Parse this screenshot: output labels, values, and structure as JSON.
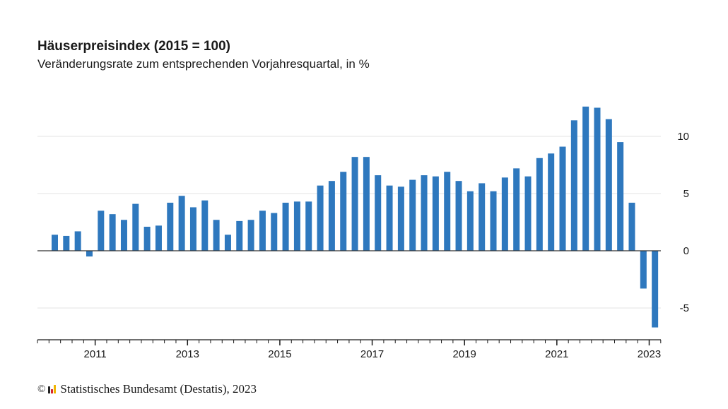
{
  "header": {
    "title": "Häuserpreisindex (2015 = 100)",
    "subtitle": "Veränderungsrate zum entsprechenden Vorjahresquartal, in %"
  },
  "footer": {
    "copyright_symbol": "©",
    "logo_icon": "destatis-bar-logo-icon",
    "source": "Statistisches Bundesamt (Destatis), 2023"
  },
  "colors": {
    "bar": "#2e78be",
    "zero_line": "#333333",
    "grid": "#e3e3e3",
    "axis": "#1a1a1a"
  },
  "chart_data": {
    "type": "bar",
    "title": "Häuserpreisindex (2015 = 100)",
    "subtitle": "Veränderungsrate zum entsprechenden Vorjahresquartal, in %",
    "xlabel": "",
    "ylabel": "",
    "y_axis_position": "right",
    "ylim": [
      -7.5,
      14
    ],
    "yticks": [
      -5,
      0,
      5,
      10
    ],
    "ytick_labels": [
      "-5",
      "0",
      "5",
      "10"
    ],
    "grid": true,
    "x_range": [
      "2009-Q4",
      "2023-Q2"
    ],
    "xtick_labels": [
      "2011",
      "2013",
      "2015",
      "2017",
      "2019",
      "2021",
      "2023"
    ],
    "xtick_years": [
      2011,
      2013,
      2015,
      2017,
      2019,
      2021,
      2023
    ],
    "categories": [
      "2010-Q1",
      "2010-Q2",
      "2010-Q3",
      "2010-Q4",
      "2011-Q1",
      "2011-Q2",
      "2011-Q3",
      "2011-Q4",
      "2012-Q1",
      "2012-Q2",
      "2012-Q3",
      "2012-Q4",
      "2013-Q1",
      "2013-Q2",
      "2013-Q3",
      "2013-Q4",
      "2014-Q1",
      "2014-Q2",
      "2014-Q3",
      "2014-Q4",
      "2015-Q1",
      "2015-Q2",
      "2015-Q3",
      "2015-Q4",
      "2016-Q1",
      "2016-Q2",
      "2016-Q3",
      "2016-Q4",
      "2017-Q1",
      "2017-Q2",
      "2017-Q3",
      "2017-Q4",
      "2018-Q1",
      "2018-Q2",
      "2018-Q3",
      "2018-Q4",
      "2019-Q1",
      "2019-Q2",
      "2019-Q3",
      "2019-Q4",
      "2020-Q1",
      "2020-Q2",
      "2020-Q3",
      "2020-Q4",
      "2021-Q1",
      "2021-Q2",
      "2021-Q3",
      "2021-Q4",
      "2022-Q1",
      "2022-Q2",
      "2022-Q3",
      "2022-Q4",
      "2023-Q1"
    ],
    "values": [
      1.4,
      1.3,
      1.7,
      -0.5,
      3.5,
      3.2,
      2.7,
      4.1,
      2.1,
      2.2,
      4.2,
      4.8,
      3.8,
      4.4,
      2.7,
      1.4,
      2.6,
      2.7,
      3.5,
      3.3,
      4.2,
      4.3,
      4.3,
      5.7,
      6.1,
      6.9,
      8.2,
      8.2,
      6.6,
      5.7,
      5.6,
      6.2,
      6.6,
      6.5,
      6.9,
      6.1,
      5.2,
      5.9,
      5.2,
      6.4,
      7.2,
      6.5,
      8.1,
      8.5,
      9.1,
      11.4,
      12.6,
      12.5,
      11.5,
      9.5,
      4.2,
      -3.3,
      -6.7
    ],
    "legend": null
  }
}
